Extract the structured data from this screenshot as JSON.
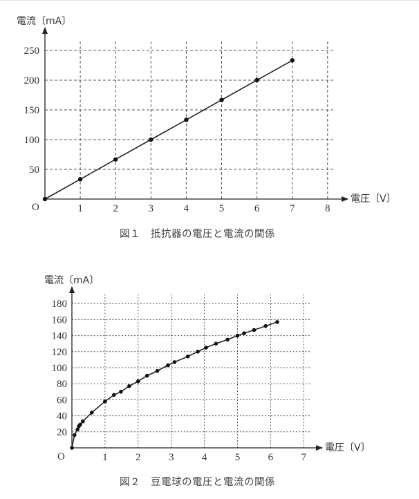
{
  "figures": [
    {
      "caption": "図１　抵抗器の電圧と電流の関係",
      "ylabel": "電流〔mA〕",
      "xlabel": "電圧〔V〕",
      "origin_label": "O"
    },
    {
      "caption": "図２　豆電球の電圧と電流の関係",
      "ylabel": "電流〔mA〕",
      "xlabel": "電圧〔V〕",
      "origin_label": "O"
    }
  ],
  "chart_data": [
    {
      "type": "line",
      "title": "図１　抵抗器の電圧と電流の関係",
      "xlabel": "電圧〔V〕",
      "ylabel": "電流〔mA〕",
      "x_ticks": [
        1,
        2,
        3,
        4,
        5,
        6,
        7,
        8
      ],
      "y_ticks": [
        50,
        100,
        150,
        200,
        250
      ],
      "xlim": [
        0,
        8
      ],
      "ylim": [
        0,
        250
      ],
      "grid": true,
      "grid_style": "dashed",
      "markers": true,
      "legend": null,
      "series": [
        {
          "name": "抵抗器",
          "x": [
            0,
            1,
            2,
            3,
            4,
            5,
            6,
            7
          ],
          "y": [
            0,
            33.3,
            66.7,
            100,
            133.3,
            166.7,
            200,
            233.3
          ]
        }
      ]
    },
    {
      "type": "line",
      "title": "図２　豆電球の電圧と電流の関係",
      "xlabel": "電圧〔V〕",
      "ylabel": "電流〔mA〕",
      "x_ticks": [
        1,
        2,
        3,
        4,
        5,
        6,
        7
      ],
      "y_ticks": [
        20,
        40,
        60,
        80,
        100,
        120,
        140,
        160,
        180
      ],
      "xlim": [
        0,
        7
      ],
      "ylim": [
        0,
        180
      ],
      "grid": true,
      "grid_style": "dotted",
      "markers": true,
      "legend": null,
      "series": [
        {
          "name": "豆電球",
          "x": [
            0,
            0.08,
            0.17,
            0.21,
            0.25,
            0.33,
            0.6,
            1.0,
            1.27,
            1.48,
            1.73,
            2.0,
            2.27,
            2.58,
            2.9,
            3.1,
            3.5,
            3.8,
            4.05,
            4.35,
            4.7,
            5.0,
            5.2,
            5.5,
            5.85,
            6.2
          ],
          "y": [
            0,
            16,
            23,
            27,
            29,
            33,
            44,
            58,
            66,
            70,
            77,
            83,
            90,
            96,
            103,
            107,
            114,
            120,
            125,
            130,
            135,
            140,
            143,
            147,
            152,
            157
          ]
        }
      ]
    }
  ]
}
